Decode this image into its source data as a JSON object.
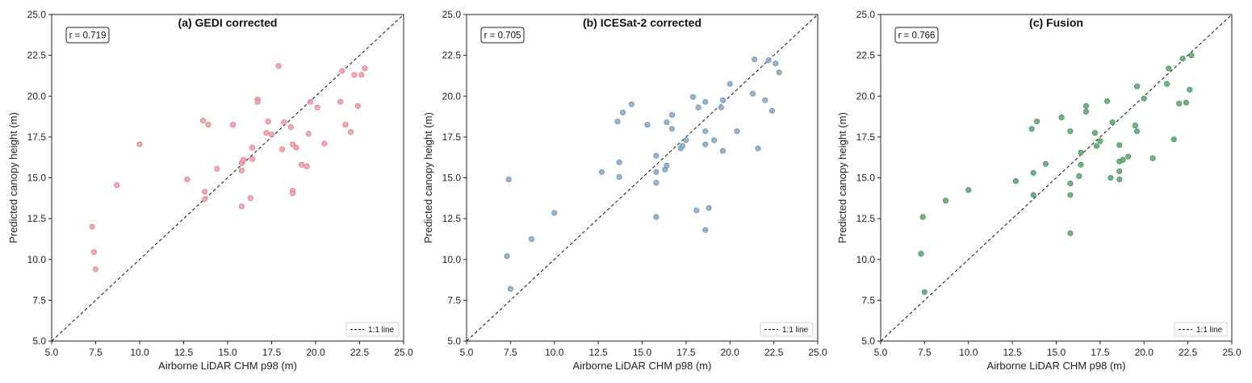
{
  "chart_data": [
    {
      "type": "scatter",
      "title": "(a) GEDI corrected",
      "xlabel": "Airborne LiDAR CHM p98 (m)",
      "ylabel": "Predicted canopy height (m)",
      "xlim": [
        5.0,
        25.0
      ],
      "ylim": [
        5.0,
        25.0
      ],
      "ticks": [
        "5.0",
        "7.5",
        "10.0",
        "12.5",
        "15.0",
        "17.5",
        "20.0",
        "22.5",
        "25.0"
      ],
      "annotation": "r = 0.719",
      "legend": {
        "label": "1:1 line",
        "placement": "lower-right"
      },
      "grid": false,
      "color": "#f0a3ab",
      "edge_color": "#d9737d",
      "points": [
        [
          7.3,
          12.0
        ],
        [
          7.4,
          10.45
        ],
        [
          7.5,
          9.4
        ],
        [
          8.7,
          14.55
        ],
        [
          10.0,
          17.05
        ],
        [
          12.7,
          14.9
        ],
        [
          13.6,
          18.5
        ],
        [
          13.7,
          14.15
        ],
        [
          13.7,
          13.7
        ],
        [
          13.9,
          18.25
        ],
        [
          14.4,
          15.55
        ],
        [
          15.3,
          18.25
        ],
        [
          15.8,
          15.45
        ],
        [
          15.8,
          15.9
        ],
        [
          15.8,
          13.25
        ],
        [
          15.9,
          16.1
        ],
        [
          16.3,
          13.75
        ],
        [
          16.4,
          16.85
        ],
        [
          16.4,
          16.15
        ],
        [
          16.7,
          19.8
        ],
        [
          16.7,
          19.65
        ],
        [
          17.2,
          17.75
        ],
        [
          17.3,
          18.45
        ],
        [
          17.5,
          17.65
        ],
        [
          17.9,
          21.85
        ],
        [
          18.1,
          16.75
        ],
        [
          18.2,
          18.4
        ],
        [
          18.6,
          18.1
        ],
        [
          18.7,
          17.05
        ],
        [
          18.7,
          14.2
        ],
        [
          18.7,
          14.05
        ],
        [
          18.9,
          16.85
        ],
        [
          19.2,
          15.8
        ],
        [
          19.5,
          15.7
        ],
        [
          19.6,
          17.7
        ],
        [
          19.7,
          19.65
        ],
        [
          20.1,
          19.3
        ],
        [
          20.5,
          17.1
        ],
        [
          21.4,
          19.65
        ],
        [
          21.5,
          21.55
        ],
        [
          21.7,
          18.25
        ],
        [
          22.0,
          17.8
        ],
        [
          22.2,
          21.3
        ],
        [
          22.4,
          19.4
        ],
        [
          22.6,
          21.3
        ],
        [
          22.8,
          21.7
        ]
      ]
    },
    {
      "type": "scatter",
      "title": "(b) ICESat-2 corrected",
      "xlabel": "Airborne LiDAR CHM p98 (m)",
      "ylabel": "Predicted canopy height (m)",
      "xlim": [
        5.0,
        25.0
      ],
      "ylim": [
        5.0,
        25.0
      ],
      "ticks": [
        "5.0",
        "7.5",
        "10.0",
        "12.5",
        "15.0",
        "17.5",
        "20.0",
        "22.5",
        "25.0"
      ],
      "annotation": "r = 0.705",
      "legend": {
        "label": "1:1 line",
        "placement": "lower-right"
      },
      "grid": false,
      "color": "#8bacc9",
      "edge_color": "#6a8db0",
      "points": [
        [
          7.3,
          10.2
        ],
        [
          7.4,
          14.9
        ],
        [
          7.5,
          8.2
        ],
        [
          8.7,
          11.25
        ],
        [
          10.0,
          12.85
        ],
        [
          12.7,
          15.35
        ],
        [
          13.6,
          18.45
        ],
        [
          13.7,
          15.95
        ],
        [
          13.7,
          15.05
        ],
        [
          13.9,
          19.0
        ],
        [
          14.4,
          19.5
        ],
        [
          15.3,
          18.25
        ],
        [
          15.8,
          16.35
        ],
        [
          15.8,
          15.35
        ],
        [
          15.8,
          14.7
        ],
        [
          15.8,
          12.6
        ],
        [
          16.3,
          15.5
        ],
        [
          16.4,
          15.75
        ],
        [
          16.4,
          18.4
        ],
        [
          16.7,
          18.0
        ],
        [
          16.7,
          18.85
        ],
        [
          17.2,
          16.8
        ],
        [
          17.3,
          16.95
        ],
        [
          17.5,
          17.3
        ],
        [
          17.9,
          19.95
        ],
        [
          18.1,
          13.0
        ],
        [
          18.2,
          19.3
        ],
        [
          18.6,
          19.65
        ],
        [
          18.6,
          17.85
        ],
        [
          18.6,
          17.05
        ],
        [
          18.6,
          11.8
        ],
        [
          18.8,
          13.15
        ],
        [
          19.1,
          17.3
        ],
        [
          19.5,
          19.3
        ],
        [
          19.6,
          19.75
        ],
        [
          19.6,
          16.65
        ],
        [
          20.0,
          20.75
        ],
        [
          20.4,
          17.85
        ],
        [
          21.3,
          20.15
        ],
        [
          21.4,
          22.25
        ],
        [
          21.6,
          16.8
        ],
        [
          22.0,
          19.75
        ],
        [
          22.2,
          22.2
        ],
        [
          22.4,
          19.1
        ],
        [
          22.6,
          22.0
        ],
        [
          22.8,
          21.45
        ]
      ]
    },
    {
      "type": "scatter",
      "title": "(c) Fusion",
      "xlabel": "Airborne LiDAR CHM p98 (m)",
      "ylabel": "Predicted canopy height (m)",
      "xlim": [
        5.0,
        25.0
      ],
      "ylim": [
        5.0,
        25.0
      ],
      "ticks": [
        "5.0",
        "7.5",
        "10.0",
        "12.5",
        "15.0",
        "17.5",
        "20.0",
        "22.5",
        "25.0"
      ],
      "annotation": "r = 0.766",
      "legend": {
        "label": "1:1 line",
        "placement": "lower-right"
      },
      "grid": false,
      "color": "#5fab78",
      "edge_color": "#3f8a58",
      "points": [
        [
          7.3,
          10.35
        ],
        [
          7.4,
          12.6
        ],
        [
          7.5,
          8.0
        ],
        [
          8.7,
          13.6
        ],
        [
          10.0,
          14.25
        ],
        [
          12.7,
          14.8
        ],
        [
          13.6,
          18.0
        ],
        [
          13.7,
          15.3
        ],
        [
          13.7,
          13.95
        ],
        [
          13.9,
          18.45
        ],
        [
          14.4,
          15.85
        ],
        [
          15.3,
          18.7
        ],
        [
          15.8,
          17.85
        ],
        [
          15.8,
          14.65
        ],
        [
          15.8,
          13.95
        ],
        [
          15.8,
          11.6
        ],
        [
          16.3,
          15.1
        ],
        [
          16.4,
          16.55
        ],
        [
          16.4,
          15.8
        ],
        [
          16.7,
          19.4
        ],
        [
          16.7,
          19.05
        ],
        [
          17.2,
          17.75
        ],
        [
          17.3,
          16.95
        ],
        [
          17.5,
          17.25
        ],
        [
          17.9,
          19.7
        ],
        [
          18.1,
          15.0
        ],
        [
          18.2,
          18.4
        ],
        [
          18.6,
          17.0
        ],
        [
          18.6,
          16.0
        ],
        [
          18.6,
          15.4
        ],
        [
          18.6,
          14.9
        ],
        [
          18.8,
          16.1
        ],
        [
          19.1,
          16.3
        ],
        [
          19.5,
          18.2
        ],
        [
          19.6,
          17.85
        ],
        [
          19.6,
          20.6
        ],
        [
          20.0,
          19.85
        ],
        [
          20.5,
          16.2
        ],
        [
          21.3,
          20.75
        ],
        [
          21.4,
          21.7
        ],
        [
          21.7,
          17.35
        ],
        [
          22.0,
          19.55
        ],
        [
          22.2,
          22.3
        ],
        [
          22.4,
          19.6
        ],
        [
          22.6,
          20.4
        ],
        [
          22.7,
          22.5
        ]
      ]
    }
  ]
}
